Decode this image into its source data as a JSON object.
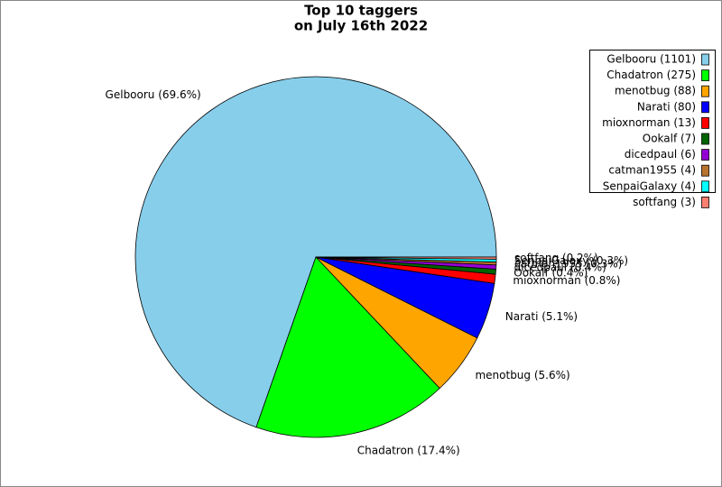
{
  "chart_data": {
    "type": "pie",
    "title": [
      "Top 10 taggers",
      "on July 16th 2022"
    ],
    "categories": [
      "Gelbooru",
      "Chadatron",
      "menotbug",
      "Narati",
      "mioxnorman",
      "Ookalf",
      "dicedpaul",
      "catman1955",
      "SenpaiGalaxy",
      "softfang"
    ],
    "values": [
      1101,
      275,
      88,
      80,
      13,
      7,
      6,
      4,
      4,
      3
    ],
    "value_labels": [
      "Gelbooru (1101)",
      "Chadatron (275)",
      "menotbug (88)",
      "Narati (80)",
      "mioxnorman (13)",
      "Ookalf (7)",
      "dicedpaul (6)",
      "catman1955 (4)",
      "SenpaiGalaxy (4)",
      "softfang (3)"
    ],
    "slice_labels": [
      "Gelbooru (69.6%)",
      "Chadatron (17.4%)",
      "menotbug (5.6%)",
      "Narati (5.1%)",
      "mioxnorman (0.8%)",
      "Ookalf (0.4%)",
      "dicedpaul (0.4%)",
      "catman1955 (0.3%)",
      "SenpaiGalaxy (0.3%)",
      "softfang (0.2%)"
    ],
    "colors": [
      "#87ceeb",
      "#00ff00",
      "#ffa500",
      "#0000ff",
      "#ff0000",
      "#006400",
      "#9400d3",
      "#b8732e",
      "#00ffff",
      "#fa8072"
    ],
    "legend": "upper right"
  }
}
